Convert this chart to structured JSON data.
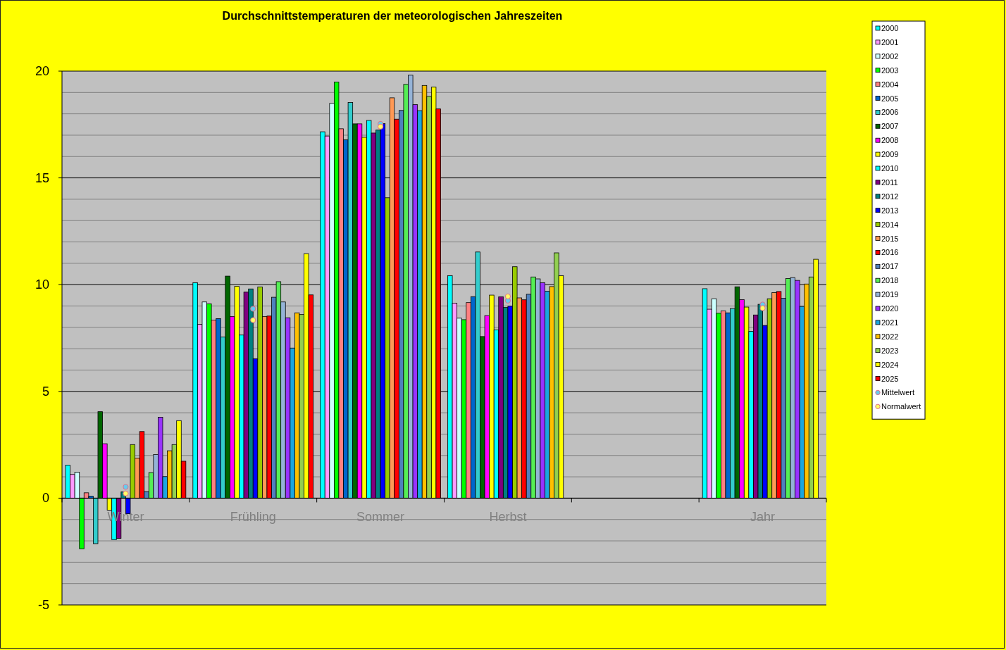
{
  "chart_data": {
    "type": "bar",
    "title": "Durchschnittstemperaturen der meteorologischen Jahreszeiten",
    "categories": [
      "Winter",
      "Frühling",
      "Sommer",
      "Herbst",
      null,
      "Jahr"
    ],
    "ylim": [
      -5,
      20
    ],
    "yticks": [
      -5,
      {
        "value": -4,
        "label": null
      },
      {
        "value": -3,
        "label": null
      },
      {
        "value": -2,
        "label": null
      },
      {
        "value": -1,
        "label": null
      },
      0,
      {
        "value": 1,
        "label": null
      },
      {
        "value": 2,
        "label": null
      },
      {
        "value": 3,
        "label": null
      },
      {
        "value": 4,
        "label": null
      },
      5,
      {
        "value": 6,
        "label": null
      },
      {
        "value": 7,
        "label": null
      },
      {
        "value": 8,
        "label": null
      },
      {
        "value": 9,
        "label": null
      },
      10,
      {
        "value": 11,
        "label": null
      },
      {
        "value": 12,
        "label": null
      },
      {
        "value": 13,
        "label": null
      },
      {
        "value": 14,
        "label": null
      },
      15,
      {
        "value": 16,
        "label": null
      },
      {
        "value": 17,
        "label": null
      },
      {
        "value": 18,
        "label": null
      },
      {
        "value": 19,
        "label": null
      },
      20
    ],
    "grid": "y",
    "legend": "top right",
    "series": [
      {
        "name": "2000",
        "color": "#00ffff",
        "values": [
          1.55,
          10.09,
          17.16,
          10.42,
          null,
          9.81
        ]
      },
      {
        "name": "2001",
        "color": "#ff99ff",
        "values": [
          1.11,
          8.14,
          16.96,
          9.13,
          null,
          8.85
        ]
      },
      {
        "name": "2002",
        "color": "#ccffff",
        "values": [
          1.22,
          9.19,
          18.49,
          8.43,
          null,
          9.34
        ]
      },
      {
        "name": "2003",
        "color": "#00ff00",
        "values": [
          -2.37,
          9.1,
          19.49,
          8.36,
          null,
          8.66
        ]
      },
      {
        "name": "2004",
        "color": "#ff8080",
        "values": [
          0.25,
          8.34,
          17.3,
          9.16,
          null,
          8.77
        ]
      },
      {
        "name": "2005",
        "color": "#0066cc",
        "values": [
          0.09,
          8.41,
          16.78,
          9.44,
          null,
          8.68
        ]
      },
      {
        "name": "2006",
        "color": "#33cccc",
        "values": [
          -2.13,
          7.55,
          18.53,
          11.53,
          null,
          8.88
        ]
      },
      {
        "name": "2007",
        "color": "#006600",
        "values": [
          4.05,
          10.4,
          17.53,
          7.57,
          null,
          9.9
        ]
      },
      {
        "name": "2008",
        "color": "#ff00ff",
        "values": [
          2.55,
          8.51,
          17.53,
          8.55,
          null,
          9.3
        ]
      },
      {
        "name": "2009",
        "color": "#ffff00",
        "values": [
          -0.56,
          9.92,
          16.9,
          9.51,
          null,
          8.95
        ]
      },
      {
        "name": "2010",
        "color": "#00ffff",
        "values": [
          -1.95,
          7.64,
          17.69,
          7.88,
          null,
          7.81
        ]
      },
      {
        "name": "2011",
        "color": "#800080",
        "values": [
          -1.88,
          9.65,
          17.1,
          9.43,
          null,
          8.58
        ]
      },
      {
        "name": "2012",
        "color": "#008080",
        "values": [
          0.3,
          9.8,
          17.24,
          8.93,
          null,
          9.08
        ]
      },
      {
        "name": "2013",
        "color": "#0000ff",
        "values": [
          -0.73,
          6.53,
          17.54,
          8.99,
          null,
          8.09
        ]
      },
      {
        "name": "2014",
        "color": "#99cc00",
        "values": [
          2.51,
          9.89,
          14.07,
          10.84,
          null,
          9.34
        ]
      },
      {
        "name": "2015",
        "color": "#ff9955",
        "values": [
          1.88,
          8.51,
          18.75,
          9.38,
          null,
          9.63
        ]
      },
      {
        "name": "2016",
        "color": "#ff0000",
        "values": [
          3.12,
          8.53,
          17.75,
          9.29,
          null,
          9.68
        ]
      },
      {
        "name": "2017",
        "color": "#4f81bd",
        "values": [
          0.31,
          9.41,
          18.16,
          9.55,
          null,
          9.36
        ]
      },
      {
        "name": "2018",
        "color": "#55ee55",
        "values": [
          1.2,
          10.14,
          19.38,
          10.36,
          null,
          10.29
        ]
      },
      {
        "name": "2019",
        "color": "#95b3d7",
        "values": [
          2.04,
          9.19,
          19.81,
          10.27,
          null,
          10.33
        ]
      },
      {
        "name": "2020",
        "color": "#9933ff",
        "values": [
          3.79,
          8.45,
          18.43,
          10.09,
          null,
          10.2
        ]
      },
      {
        "name": "2021",
        "color": "#1ca6e0",
        "values": [
          1.01,
          7.03,
          18.15,
          9.69,
          null,
          8.98
        ]
      },
      {
        "name": "2022",
        "color": "#ffc000",
        "values": [
          2.22,
          8.68,
          19.33,
          9.91,
          null,
          10.03
        ]
      },
      {
        "name": "2023",
        "color": "#92d050",
        "values": [
          2.51,
          8.6,
          18.82,
          11.49,
          null,
          10.36
        ]
      },
      {
        "name": "2024",
        "color": "#ffff00",
        "values": [
          3.63,
          11.45,
          19.25,
          10.42,
          null,
          11.19
        ]
      },
      {
        "name": "2025",
        "color": "#ff0000",
        "values": [
          1.73,
          9.52,
          18.23,
          null,
          null,
          null
        ]
      },
      {
        "name": "Mittelwert",
        "type": "scatter",
        "marker": "circle",
        "color": "#66ccee",
        "values": [
          0.53,
          8.87,
          17.53,
          9.25,
          null,
          9.07
        ]
      },
      {
        "name": "Normalwert",
        "type": "scatter",
        "marker": "circle",
        "color": "#ffff66",
        "values": [
          0.22,
          8.34,
          17.4,
          9.45,
          null,
          8.9
        ]
      }
    ]
  }
}
